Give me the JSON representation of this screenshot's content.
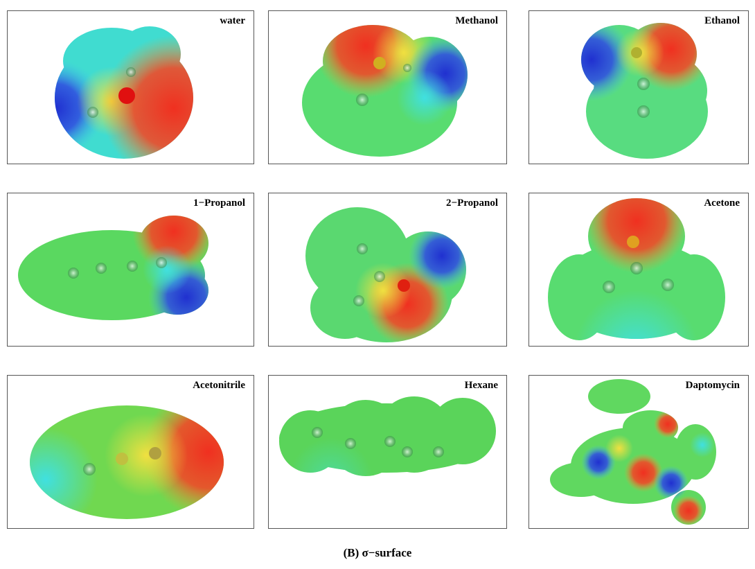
{
  "panels": [
    {
      "label": "water"
    },
    {
      "label": "Methanol"
    },
    {
      "label": "Ethanol"
    },
    {
      "label": "1−Propanol"
    },
    {
      "label": "2−Propanol"
    },
    {
      "label": "Acetone"
    },
    {
      "label": "Acetonitrile"
    },
    {
      "label": "Hexane"
    },
    {
      "label": "Daptomycin"
    }
  ],
  "caption": "(B) σ−surface"
}
